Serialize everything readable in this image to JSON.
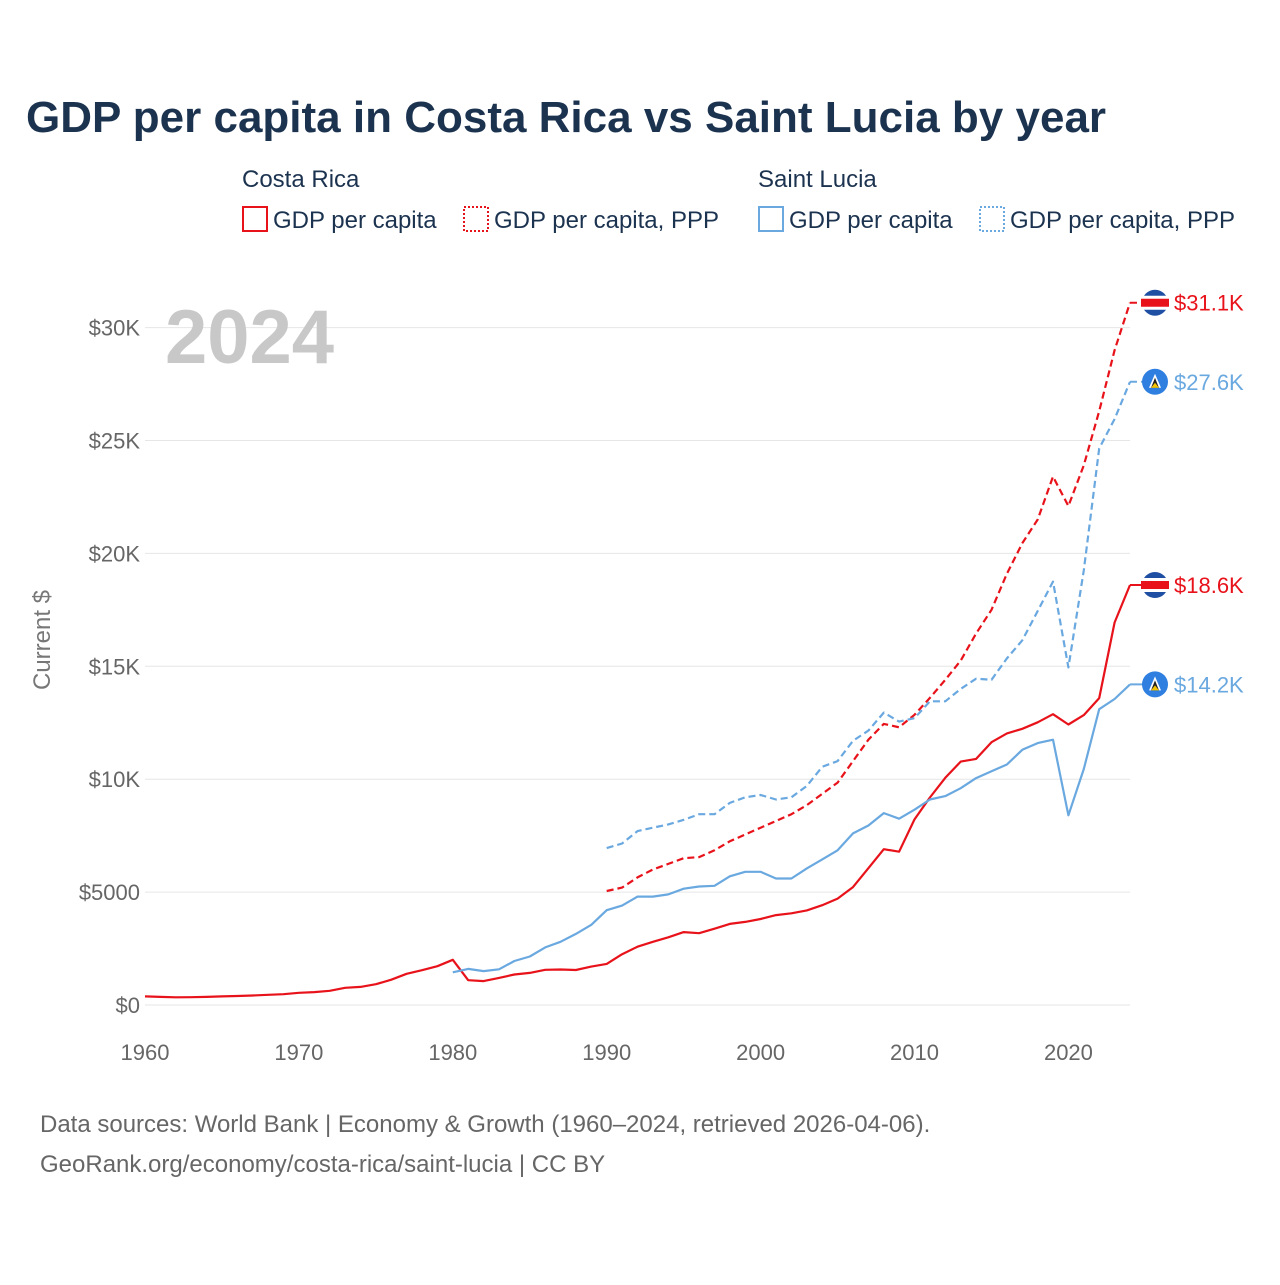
{
  "title": "GDP per capita in Costa Rica vs Saint Lucia by year",
  "year_label": "2024",
  "legend": {
    "groups": [
      {
        "name": "Costa Rica",
        "items": [
          "GDP per capita",
          "GDP per capita, PPP"
        ]
      },
      {
        "name": "Saint Lucia",
        "items": [
          "GDP per capita",
          "GDP per capita, PPP"
        ]
      }
    ]
  },
  "sources": {
    "line1": "Data sources: World Bank | Economy & Growth (1960–2024, retrieved 2026-04-06).",
    "line2": "GeoRank.org/economy/costa-rica/saint-lucia | CC BY"
  },
  "colors": {
    "costa_rica": "#e8121a",
    "saint_lucia": "#6aa8e0",
    "grid": "#e6e6e6",
    "title": "#1c3350"
  },
  "chart_data": {
    "type": "line",
    "title": "GDP per capita in Costa Rica vs Saint Lucia by year",
    "xlabel": "",
    "ylabel": "Current $",
    "xlim": [
      1960,
      2024
    ],
    "ylim": [
      0,
      31000
    ],
    "x_ticks": [
      1960,
      1970,
      1980,
      1990,
      2000,
      2010,
      2020
    ],
    "x_tick_labels": [
      "1960",
      "1970",
      "1980",
      "1990",
      "2000",
      "2010",
      "2020"
    ],
    "y_ticks": [
      0,
      5000,
      10000,
      15000,
      20000,
      25000,
      30000
    ],
    "y_tick_labels": [
      "$0",
      "$5000",
      "$10K",
      "$15K",
      "$20K",
      "$25K",
      "$30K"
    ],
    "grid": true,
    "series": [
      {
        "name": "Costa Rica GDP per capita",
        "style": "solid",
        "color": "#e8121a",
        "end_label": "$18.6K",
        "points": [
          [
            1960,
            380
          ],
          [
            1961,
            360
          ],
          [
            1962,
            340
          ],
          [
            1963,
            345
          ],
          [
            1964,
            360
          ],
          [
            1965,
            380
          ],
          [
            1966,
            400
          ],
          [
            1967,
            420
          ],
          [
            1968,
            450
          ],
          [
            1969,
            480
          ],
          [
            1970,
            540
          ],
          [
            1971,
            570
          ],
          [
            1972,
            630
          ],
          [
            1973,
            760
          ],
          [
            1974,
            800
          ],
          [
            1975,
            920
          ],
          [
            1976,
            1120
          ],
          [
            1977,
            1380
          ],
          [
            1978,
            1540
          ],
          [
            1979,
            1720
          ],
          [
            1980,
            2000
          ],
          [
            1981,
            1100
          ],
          [
            1982,
            1060
          ],
          [
            1983,
            1200
          ],
          [
            1984,
            1350
          ],
          [
            1985,
            1420
          ],
          [
            1986,
            1560
          ],
          [
            1987,
            1570
          ],
          [
            1988,
            1550
          ],
          [
            1989,
            1700
          ],
          [
            1990,
            1820
          ],
          [
            1991,
            2250
          ],
          [
            1992,
            2580
          ],
          [
            1993,
            2800
          ],
          [
            1994,
            3000
          ],
          [
            1995,
            3230
          ],
          [
            1996,
            3180
          ],
          [
            1997,
            3380
          ],
          [
            1998,
            3590
          ],
          [
            1999,
            3680
          ],
          [
            2000,
            3810
          ],
          [
            2001,
            3980
          ],
          [
            2002,
            4060
          ],
          [
            2003,
            4190
          ],
          [
            2004,
            4420
          ],
          [
            2005,
            4710
          ],
          [
            2006,
            5220
          ],
          [
            2007,
            6060
          ],
          [
            2008,
            6900
          ],
          [
            2009,
            6790
          ],
          [
            2010,
            8220
          ],
          [
            2011,
            9190
          ],
          [
            2012,
            10060
          ],
          [
            2013,
            10780
          ],
          [
            2014,
            10900
          ],
          [
            2015,
            11640
          ],
          [
            2016,
            12030
          ],
          [
            2017,
            12230
          ],
          [
            2018,
            12520
          ],
          [
            2019,
            12880
          ],
          [
            2020,
            12420
          ],
          [
            2021,
            12840
          ],
          [
            2022,
            13590
          ],
          [
            2023,
            16940
          ],
          [
            2024,
            18600
          ]
        ]
      },
      {
        "name": "Costa Rica GDP per capita, PPP",
        "style": "dashed",
        "color": "#e8121a",
        "end_label": "$31.1K",
        "points": [
          [
            1990,
            5050
          ],
          [
            1991,
            5200
          ],
          [
            1992,
            5650
          ],
          [
            1993,
            6000
          ],
          [
            1994,
            6250
          ],
          [
            1995,
            6500
          ],
          [
            1996,
            6550
          ],
          [
            1997,
            6850
          ],
          [
            1998,
            7250
          ],
          [
            1999,
            7550
          ],
          [
            2000,
            7850
          ],
          [
            2001,
            8150
          ],
          [
            2002,
            8450
          ],
          [
            2003,
            8850
          ],
          [
            2004,
            9350
          ],
          [
            2005,
            9850
          ],
          [
            2006,
            10800
          ],
          [
            2007,
            11750
          ],
          [
            2008,
            12450
          ],
          [
            2009,
            12300
          ],
          [
            2010,
            12850
          ],
          [
            2011,
            13600
          ],
          [
            2012,
            14400
          ],
          [
            2013,
            15250
          ],
          [
            2014,
            16450
          ],
          [
            2015,
            17500
          ],
          [
            2016,
            19100
          ],
          [
            2017,
            20450
          ],
          [
            2018,
            21500
          ],
          [
            2019,
            23400
          ],
          [
            2020,
            22100
          ],
          [
            2021,
            23900
          ],
          [
            2022,
            26300
          ],
          [
            2023,
            29000
          ],
          [
            2024,
            31100
          ]
        ]
      },
      {
        "name": "Saint Lucia GDP per capita",
        "style": "solid",
        "color": "#6aa8e0",
        "end_label": "$14.2K",
        "points": [
          [
            1980,
            1450
          ],
          [
            1981,
            1600
          ],
          [
            1982,
            1500
          ],
          [
            1983,
            1580
          ],
          [
            1984,
            1950
          ],
          [
            1985,
            2150
          ],
          [
            1986,
            2550
          ],
          [
            1987,
            2800
          ],
          [
            1988,
            3150
          ],
          [
            1989,
            3550
          ],
          [
            1990,
            4200
          ],
          [
            1991,
            4400
          ],
          [
            1992,
            4800
          ],
          [
            1993,
            4800
          ],
          [
            1994,
            4900
          ],
          [
            1995,
            5150
          ],
          [
            1996,
            5250
          ],
          [
            1997,
            5280
          ],
          [
            1998,
            5700
          ],
          [
            1999,
            5900
          ],
          [
            2000,
            5900
          ],
          [
            2001,
            5600
          ],
          [
            2002,
            5600
          ],
          [
            2003,
            6050
          ],
          [
            2004,
            6450
          ],
          [
            2005,
            6850
          ],
          [
            2006,
            7600
          ],
          [
            2007,
            7950
          ],
          [
            2008,
            8500
          ],
          [
            2009,
            8250
          ],
          [
            2010,
            8650
          ],
          [
            2011,
            9100
          ],
          [
            2012,
            9250
          ],
          [
            2013,
            9600
          ],
          [
            2014,
            10050
          ],
          [
            2015,
            10350
          ],
          [
            2016,
            10650
          ],
          [
            2017,
            11300
          ],
          [
            2018,
            11600
          ],
          [
            2019,
            11750
          ],
          [
            2020,
            8400
          ],
          [
            2021,
            10450
          ],
          [
            2022,
            13100
          ],
          [
            2023,
            13550
          ],
          [
            2024,
            14200
          ]
        ]
      },
      {
        "name": "Saint Lucia GDP per capita, PPP",
        "style": "dashed",
        "color": "#6aa8e0",
        "end_label": "$27.6K",
        "points": [
          [
            1990,
            6950
          ],
          [
            1991,
            7150
          ],
          [
            1992,
            7700
          ],
          [
            1993,
            7850
          ],
          [
            1994,
            8000
          ],
          [
            1995,
            8200
          ],
          [
            1996,
            8450
          ],
          [
            1997,
            8450
          ],
          [
            1998,
            8950
          ],
          [
            1999,
            9200
          ],
          [
            2000,
            9300
          ],
          [
            2001,
            9100
          ],
          [
            2002,
            9200
          ],
          [
            2003,
            9700
          ],
          [
            2004,
            10550
          ],
          [
            2005,
            10800
          ],
          [
            2006,
            11700
          ],
          [
            2007,
            12150
          ],
          [
            2008,
            12950
          ],
          [
            2009,
            12550
          ],
          [
            2010,
            12700
          ],
          [
            2011,
            13450
          ],
          [
            2012,
            13450
          ],
          [
            2013,
            14000
          ],
          [
            2014,
            14450
          ],
          [
            2015,
            14400
          ],
          [
            2016,
            15350
          ],
          [
            2017,
            16150
          ],
          [
            2018,
            17450
          ],
          [
            2019,
            18750
          ],
          [
            2020,
            14950
          ],
          [
            2021,
            19250
          ],
          [
            2022,
            24650
          ],
          [
            2023,
            25950
          ],
          [
            2024,
            27600
          ]
        ]
      }
    ]
  }
}
